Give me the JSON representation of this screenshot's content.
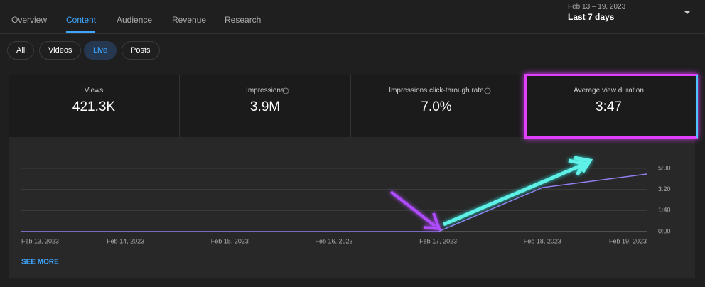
{
  "tabs": [
    "Overview",
    "Content",
    "Audience",
    "Revenue",
    "Research"
  ],
  "date_range": {
    "dates": "Feb 13 – 19, 2023",
    "label": "Last 7 days"
  },
  "filters": [
    "All",
    "Videos",
    "Live",
    "Posts"
  ],
  "metrics": [
    {
      "label": "Views",
      "value": "421.3K"
    },
    {
      "label": "Impressions",
      "value": "3.9M"
    },
    {
      "label": "Impressions click-through rate",
      "value": "7.0%"
    },
    {
      "label": "Average view duration",
      "value": "3:47"
    }
  ],
  "chart_data": {
    "type": "line",
    "x": [
      "Feb 13, 2023",
      "Feb 14, 2023",
      "Feb 15, 2023",
      "Feb 16, 2023",
      "Feb 17, 2023",
      "Feb 18, 2023",
      "Feb 19, 2023"
    ],
    "series": [
      {
        "color": "#8f7ff0",
        "values": [
          0,
          0,
          0,
          0,
          0,
          209,
          273
        ]
      }
    ],
    "ylim": [
      0,
      300
    ],
    "yticks": [
      {
        "value": 0,
        "label": "0:00"
      },
      {
        "value": 100,
        "label": "1:40"
      },
      {
        "value": 200,
        "label": "3:20"
      },
      {
        "value": 300,
        "label": "5:00"
      }
    ],
    "grid": true
  },
  "see_more": "SEE MORE"
}
